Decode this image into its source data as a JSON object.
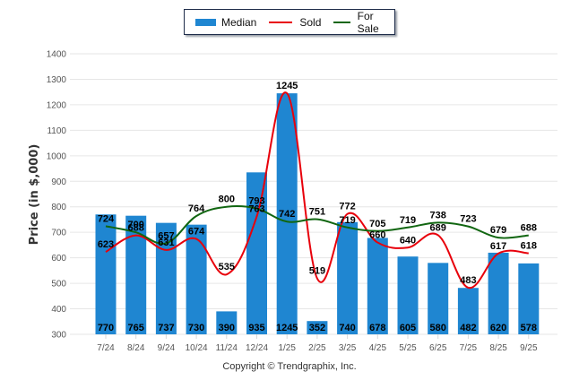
{
  "chart_data": {
    "type": "bar",
    "title": "",
    "xlabel": "",
    "ylabel": "Price (in $,000)",
    "ylim": [
      300,
      1400
    ],
    "yticks": [
      300,
      400,
      500,
      600,
      700,
      800,
      900,
      1000,
      1100,
      1200,
      1300,
      1400
    ],
    "grid": true,
    "legend_position": "top-center",
    "categories": [
      "7/24",
      "8/24",
      "9/24",
      "10/24",
      "11/24",
      "12/24",
      "1/25",
      "2/25",
      "3/25",
      "4/25",
      "5/25",
      "6/25",
      "7/25",
      "8/25",
      "9/25"
    ],
    "series": [
      {
        "name": "Median",
        "kind": "bar",
        "color": "#1f86d1",
        "values": [
          770,
          765,
          737,
          730,
          390,
          935,
          1245,
          352,
          740,
          678,
          605,
          580,
          482,
          620,
          578
        ]
      },
      {
        "name": "Sold",
        "kind": "line",
        "color": "#e8000b",
        "values": [
          623,
          688,
          631,
          674,
          535,
          763,
          1245,
          519,
          772,
          660,
          640,
          689,
          483,
          617,
          618
        ]
      },
      {
        "name": "For Sale",
        "kind": "line",
        "color": "#116611",
        "values": [
          724,
          700,
          657,
          764,
          800,
          793,
          742,
          751,
          719,
          705,
          719,
          738,
          723,
          679,
          688
        ]
      }
    ]
  },
  "legend": {
    "items": [
      {
        "label": "Median",
        "color": "#1f86d1"
      },
      {
        "label": "Sold",
        "color": "#e8000b"
      },
      {
        "label": "For Sale",
        "color": "#116611"
      }
    ]
  },
  "footer": {
    "copyright": "Copyright © Trendgraphix, Inc."
  }
}
